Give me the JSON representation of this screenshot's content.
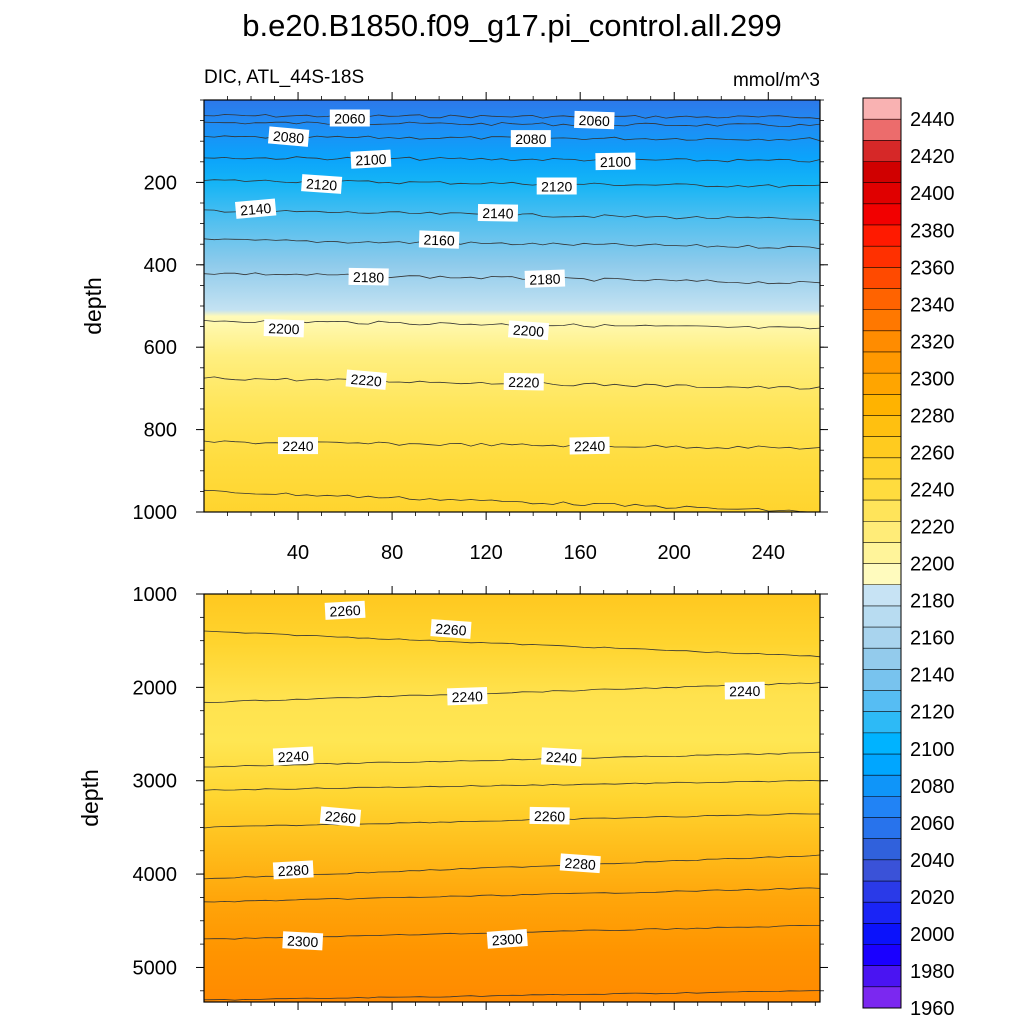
{
  "title": "b.e20.B1850.f09_g17.pi_control.all.299",
  "subtitle_left": "DIC, ATL_44S-18S",
  "subtitle_right": "mmol/m^3",
  "chart_data": {
    "type": "contour",
    "title": "b.e20.B1850.f09_g17.pi_control.all.299",
    "variable": "DIC",
    "region": "ATL_44S-18S",
    "units": "mmol/m^3",
    "x": {
      "range": [
        0,
        262
      ],
      "ticks": [
        40,
        80,
        120,
        160,
        200,
        240
      ],
      "labels": [
        "40",
        "80",
        "120",
        "160",
        "200",
        "240"
      ]
    },
    "panels": [
      {
        "name": "upper",
        "ylabel": "depth",
        "yrange": [
          0,
          1000
        ],
        "yticks": [
          200,
          400,
          600,
          800,
          1000
        ],
        "ytick_labels": [
          "200",
          "400",
          "600",
          "800",
          "1000"
        ],
        "isolines": [
          {
            "value": 2040,
            "depth": [
              38,
              42
            ]
          },
          {
            "value": 2060,
            "depth": [
              55,
              62
            ]
          },
          {
            "value": 2080,
            "depth": [
              90,
              95
            ]
          },
          {
            "value": 2100,
            "depth": [
              140,
              148
            ]
          },
          {
            "value": 2120,
            "depth": [
              195,
              210
            ]
          },
          {
            "value": 2140,
            "depth": [
              268,
              290
            ]
          },
          {
            "value": 2160,
            "depth": [
              340,
              358
            ]
          },
          {
            "value": 2180,
            "depth": [
              420,
              445
            ]
          },
          {
            "value": 2200,
            "depth": [
              535,
              555
            ]
          },
          {
            "value": 2220,
            "depth": [
              675,
              700
            ]
          },
          {
            "value": 2240,
            "depth": [
              830,
              845
            ]
          },
          {
            "value": 2260,
            "depth": [
              950,
              1000
            ]
          }
        ],
        "contour_labels": [
          {
            "text": "2060",
            "x": 62,
            "depth": 45
          },
          {
            "text": "2060",
            "x": 166,
            "depth": 50
          },
          {
            "text": "2080",
            "x": 36,
            "depth": 90
          },
          {
            "text": "2080",
            "x": 139,
            "depth": 95
          },
          {
            "text": "2100",
            "x": 71,
            "depth": 145
          },
          {
            "text": "2100",
            "x": 175,
            "depth": 150
          },
          {
            "text": "2120",
            "x": 50,
            "depth": 205
          },
          {
            "text": "2120",
            "x": 150,
            "depth": 210
          },
          {
            "text": "2140",
            "x": 22,
            "depth": 265
          },
          {
            "text": "2140",
            "x": 125,
            "depth": 275
          },
          {
            "text": "2160",
            "x": 100,
            "depth": 340
          },
          {
            "text": "2180",
            "x": 70,
            "depth": 430
          },
          {
            "text": "2180",
            "x": 145,
            "depth": 435
          },
          {
            "text": "2200",
            "x": 34,
            "depth": 555
          },
          {
            "text": "2200",
            "x": 138,
            "depth": 560
          },
          {
            "text": "2220",
            "x": 69,
            "depth": 680
          },
          {
            "text": "2220",
            "x": 136,
            "depth": 685
          },
          {
            "text": "2240",
            "x": 40,
            "depth": 840
          },
          {
            "text": "2240",
            "x": 164,
            "depth": 840
          }
        ]
      },
      {
        "name": "lower",
        "ylabel": "depth",
        "yrange": [
          1000,
          5370
        ],
        "yticks": [
          1000,
          2000,
          3000,
          4000,
          5000
        ],
        "ytick_labels": [
          "1000",
          "2000",
          "3000",
          "4000",
          "5000"
        ],
        "isolines": [
          {
            "value": 2260,
            "depth": [
              1400,
              1670
            ]
          },
          {
            "value": 2240,
            "depth": [
              2160,
              1950
            ]
          },
          {
            "value": 2240,
            "depth": [
              2850,
              2700
            ]
          },
          {
            "value": 2260,
            "depth": [
              3100,
              3000
            ]
          },
          {
            "value": 2260,
            "depth": [
              3500,
              3350
            ]
          },
          {
            "value": 2280,
            "depth": [
              4050,
              3800
            ]
          },
          {
            "value": 2280,
            "depth": [
              4300,
              4150
            ]
          },
          {
            "value": 2300,
            "depth": [
              4700,
              4550
            ]
          },
          {
            "value": 2320,
            "depth": [
              5350,
              5250
            ]
          }
        ],
        "contour_labels": [
          {
            "text": "2260",
            "x": 60,
            "depth": 1180
          },
          {
            "text": "2260",
            "x": 105,
            "depth": 1380
          },
          {
            "text": "2240",
            "x": 112,
            "depth": 2100
          },
          {
            "text": "2240",
            "x": 230,
            "depth": 2040
          },
          {
            "text": "2240",
            "x": 38,
            "depth": 2740
          },
          {
            "text": "2240",
            "x": 152,
            "depth": 2750
          },
          {
            "text": "2260",
            "x": 58,
            "depth": 3390
          },
          {
            "text": "2260",
            "x": 147,
            "depth": 3380
          },
          {
            "text": "2280",
            "x": 38,
            "depth": 3960
          },
          {
            "text": "2280",
            "x": 160,
            "depth": 3890
          },
          {
            "text": "2300",
            "x": 42,
            "depth": 4720
          },
          {
            "text": "2300",
            "x": 129,
            "depth": 4700
          }
        ]
      }
    ],
    "colorbar": {
      "levels": [
        "2440",
        "2420",
        "2400",
        "2380",
        "2360",
        "2340",
        "2320",
        "2300",
        "2280",
        "2260",
        "2240",
        "2220",
        "2200",
        "2180",
        "2160",
        "2140",
        "2120",
        "2100",
        "2080",
        "2060",
        "2040",
        "2020",
        "2000",
        "1980",
        "1960"
      ],
      "colors": [
        "#f9b2b2",
        "#ec6c6c",
        "#d62828",
        "#d00000",
        "#e00000",
        "#f20000",
        "#ff1a00",
        "#ff3000",
        "#ff4a00",
        "#ff6300",
        "#ff7800",
        "#ff8c00",
        "#ff9800",
        "#ffa500",
        "#ffb300",
        "#ffc010",
        "#ffcb1f",
        "#ffd42e",
        "#ffdc3e",
        "#ffe45a",
        "#ffec78",
        "#fff49a",
        "#fffbbe",
        "#c7e3f4",
        "#b8dcf1",
        "#a9d4ee",
        "#93cbec",
        "#78c3ee",
        "#56bdf3",
        "#2dbaf6",
        "#00b3ff",
        "#00a6ff",
        "#0f95f9",
        "#2183f5",
        "#2873ec",
        "#3061dc",
        "#3a52d8",
        "#2a3ae8",
        "#1a24f6",
        "#0b12fb",
        "#1a00ff",
        "#4a14f2",
        "#7b28f0"
      ]
    }
  }
}
